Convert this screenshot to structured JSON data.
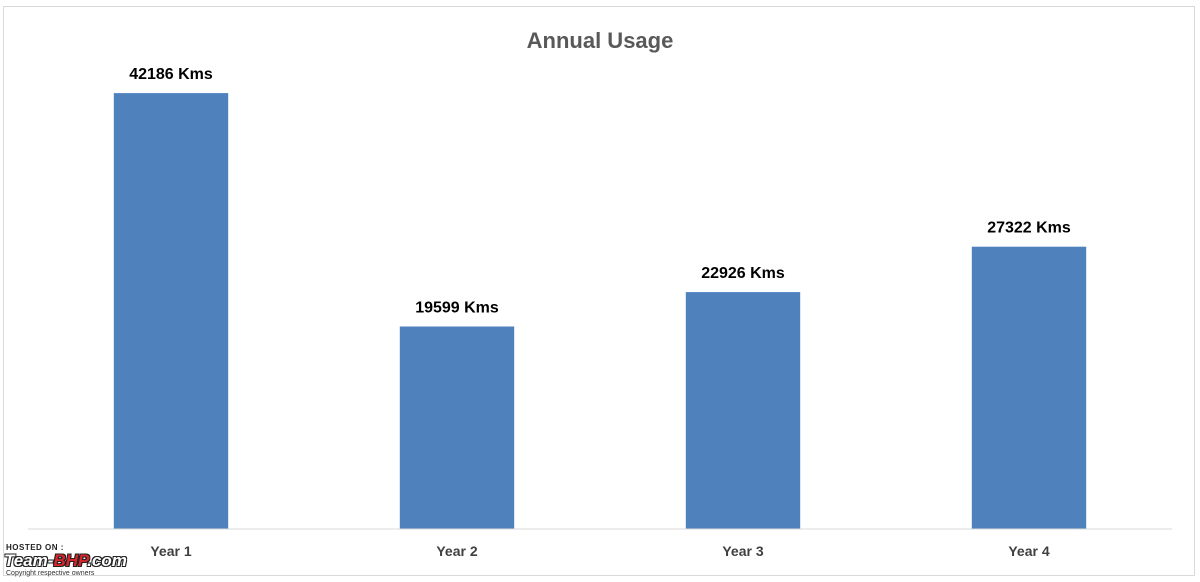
{
  "chart_data": {
    "type": "bar",
    "title": "Annual Usage",
    "xlabel": "",
    "ylabel": "",
    "categories": [
      "Year 1",
      "Year 2",
      "Year 3",
      "Year 4"
    ],
    "values": [
      42186,
      19599,
      22926,
      27322
    ],
    "data_labels": [
      "42186 Kms",
      "19599 Kms",
      "22926 Kms",
      "27322 Kms"
    ],
    "ylim": [
      0,
      45000
    ],
    "grid": false,
    "legend": "none",
    "bar_color": "#4f81bd"
  },
  "watermark": {
    "hosted_on": "HOSTED ON :",
    "brand_prefix": "Team-",
    "brand_accent": "BHP",
    "brand_suffix": ".com",
    "copyright": "Copyright respective owners"
  }
}
